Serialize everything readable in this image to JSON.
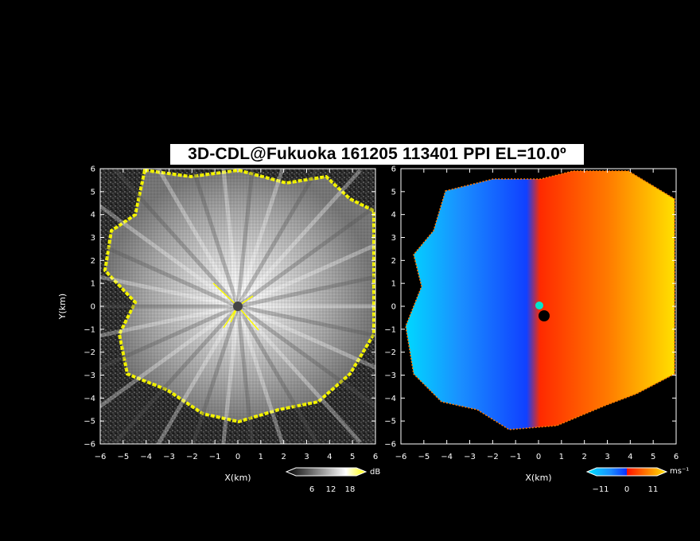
{
  "chart_data": [
    {
      "type": "heatmap",
      "title": "3D-CDL@Fukuoka 161205 113401 PPI EL=10.0º",
      "panel": "reflectivity",
      "xlabel": "X(km)",
      "ylabel": "Y(km)",
      "xlim": [
        -6,
        6
      ],
      "ylim": [
        -6,
        6
      ],
      "x_ticks": [
        "−6",
        "−5",
        "−4",
        "−3",
        "−2",
        "−1",
        "0",
        "1",
        "2",
        "3",
        "4",
        "5",
        "6"
      ],
      "y_ticks": [
        "−6",
        "−5",
        "−4",
        "−3",
        "−2",
        "−1",
        "0",
        "1",
        "2",
        "3",
        "4",
        "5",
        "6"
      ],
      "colorbar": {
        "unit": "dB",
        "ticks": [
          "6",
          "12",
          "18"
        ],
        "range": [
          0,
          21
        ],
        "colors": [
          "#000000",
          "#ffffff",
          "#ffff00"
        ]
      }
    },
    {
      "type": "heatmap",
      "panel": "doppler velocity",
      "xlabel": "X(km)",
      "xlim": [
        -6,
        6
      ],
      "ylim": [
        -6,
        6
      ],
      "x_ticks": [
        "−6",
        "−5",
        "−4",
        "−3",
        "−2",
        "−1",
        "0",
        "1",
        "2",
        "3",
        "4",
        "5",
        "6"
      ],
      "colorbar": {
        "unit": "ms⁻¹",
        "ticks": [
          "−11",
          "0",
          "11"
        ],
        "range": [
          -14,
          14
        ],
        "colors": [
          "#00e5ff",
          "#0a3cff",
          "#ff0000",
          "#ffe600"
        ]
      }
    }
  ]
}
